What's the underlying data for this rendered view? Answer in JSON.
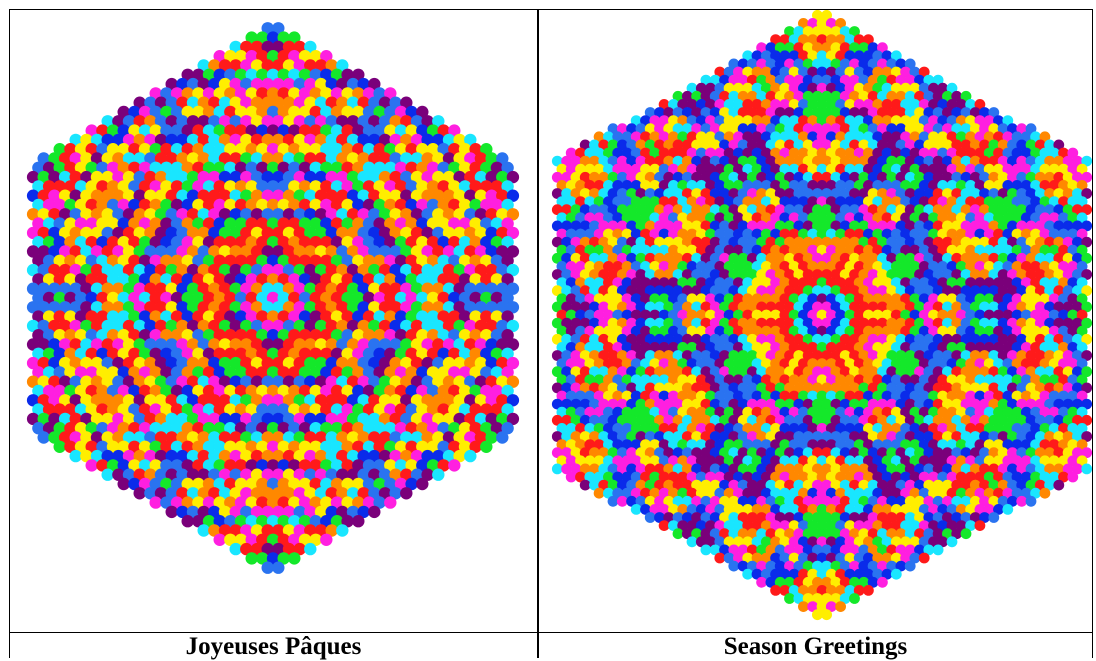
{
  "captions": {
    "left": "Joyeuses Pâques",
    "right": "Season Greetings"
  },
  "colors": {
    "border": "#000000",
    "background": "#ffffff",
    "bead_palette": [
      "#0a2bea",
      "#2a73f0",
      "#ff1fe0",
      "#ffee00",
      "#ff8800",
      "#ff1a1a",
      "#19e6ff",
      "#14e82a",
      "#7a007a"
    ]
  },
  "images": {
    "left": {
      "name": "joyeuses-paques-hex-mosaic"
    },
    "right": {
      "name": "season-greetings-hex-mosaic"
    }
  }
}
